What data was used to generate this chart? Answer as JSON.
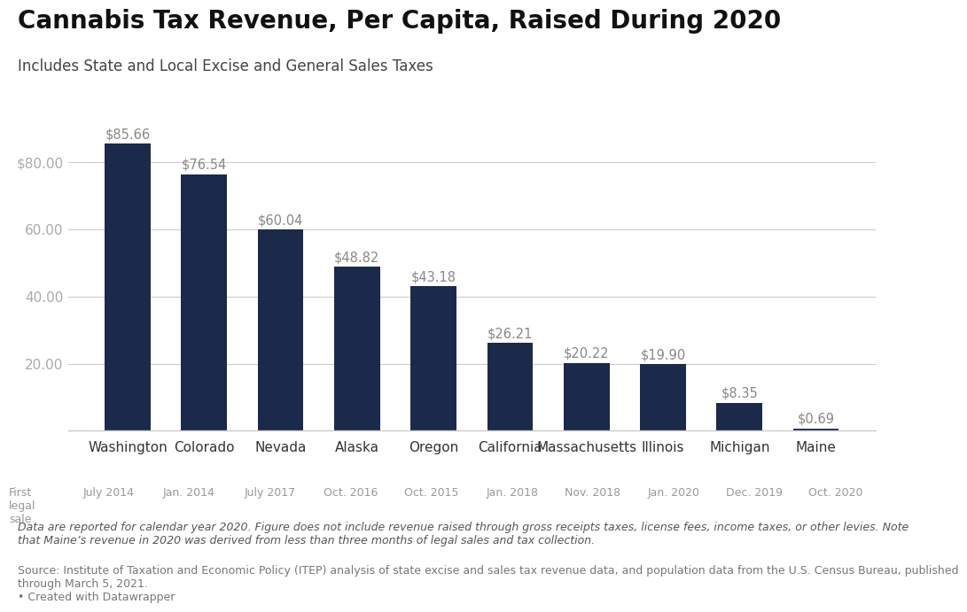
{
  "title": "Cannabis Tax Revenue, Per Capita, Raised During 2020",
  "subtitle": "Includes State and Local Excise and General Sales Taxes",
  "states": [
    "Washington",
    "Colorado",
    "Nevada",
    "Alaska",
    "Oregon",
    "California",
    "Massachusetts",
    "Illinois",
    "Michigan",
    "Maine"
  ],
  "values": [
    85.66,
    76.54,
    60.04,
    48.82,
    43.18,
    26.21,
    20.22,
    19.9,
    8.35,
    0.69
  ],
  "labels": [
    "$85.66",
    "$76.54",
    "$60.04",
    "$48.82",
    "$43.18",
    "$26.21",
    "$20.22",
    "$19.90",
    "$8.35",
    "$0.69"
  ],
  "first_legal_sale": [
    "July 2014",
    "Jan. 2014",
    "July 2017",
    "Oct. 2016",
    "Oct. 2015",
    "Jan. 2018",
    "Nov. 2018",
    "Jan. 2020",
    "Dec. 2019",
    "Oct. 2020"
  ],
  "bar_color": "#1b2a4a",
  "yticks": [
    0,
    20,
    40,
    60,
    80
  ],
  "ylim": [
    0,
    97
  ],
  "background_color": "#ffffff",
  "grid_color": "#cccccc",
  "footnote_italic": "Data are reported for calendar year 2020. Figure does not include revenue raised through gross receipts taxes, license fees, income taxes, or other levies. Note\nthat Maine’s revenue in 2020 was derived from less than three months of legal sales and tax collection.",
  "footnote_source": "Source: Institute of Taxation and Economic Policy (ITEP) analysis of state excise and sales tax revenue data, and population data from the U.S. Census Bureau, published\nthrough March 5, 2021.\n• Created with Datawrapper",
  "title_fontsize": 20,
  "subtitle_fontsize": 12,
  "tick_label_fontsize": 11,
  "bar_label_fontsize": 10.5,
  "footnote_fontsize": 9,
  "axis_label_color": "#aaaaaa",
  "bar_label_color": "#888888",
  "state_label_color": "#333333",
  "date_label_color": "#999999",
  "first_label_color": "#999999"
}
